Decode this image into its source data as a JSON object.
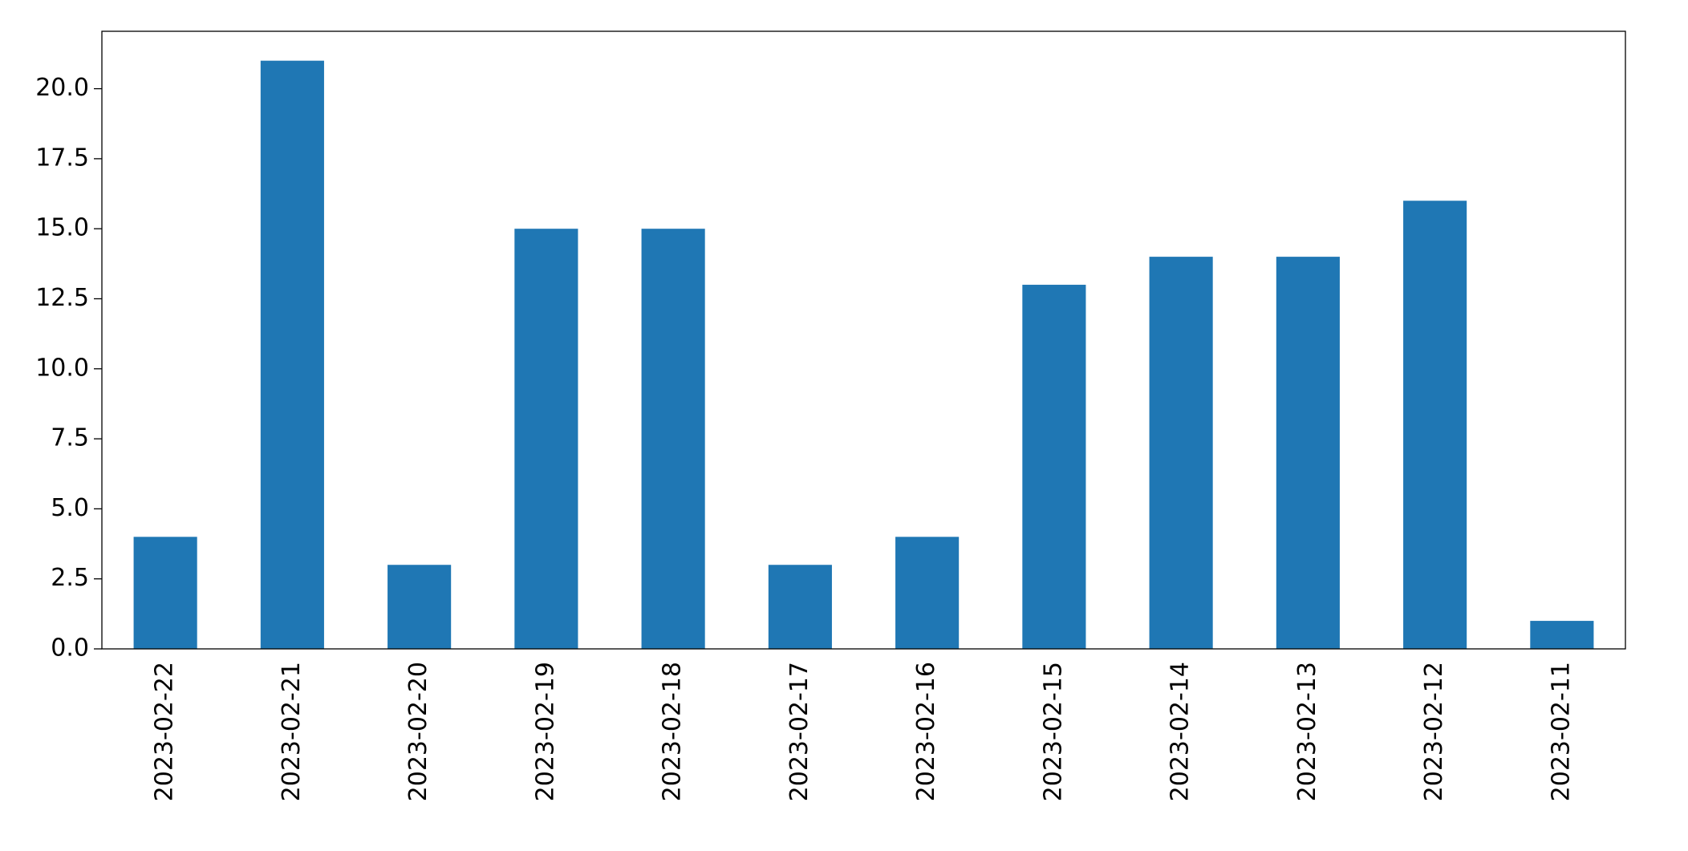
{
  "chart_data": {
    "type": "bar",
    "categories": [
      "2023-02-22",
      "2023-02-21",
      "2023-02-20",
      "2023-02-19",
      "2023-02-18",
      "2023-02-17",
      "2023-02-16",
      "2023-02-15",
      "2023-02-14",
      "2023-02-13",
      "2023-02-12",
      "2023-02-11"
    ],
    "values": [
      4,
      21,
      3,
      15,
      15,
      3,
      4,
      13,
      14,
      14,
      16,
      1
    ],
    "color": "#1f77b4",
    "ylim": [
      0,
      22.05
    ],
    "yticks": [
      {
        "value": 0,
        "label": "0.0"
      },
      {
        "value": 2.5,
        "label": "2.5"
      },
      {
        "value": 5,
        "label": "5.0"
      },
      {
        "value": 7.5,
        "label": "7.5"
      },
      {
        "value": 10,
        "label": "10.0"
      },
      {
        "value": 12.5,
        "label": "12.5"
      },
      {
        "value": 15,
        "label": "15.0"
      },
      {
        "value": 17.5,
        "label": "17.5"
      },
      {
        "value": 20,
        "label": "20.0"
      }
    ],
    "grid": false
  }
}
